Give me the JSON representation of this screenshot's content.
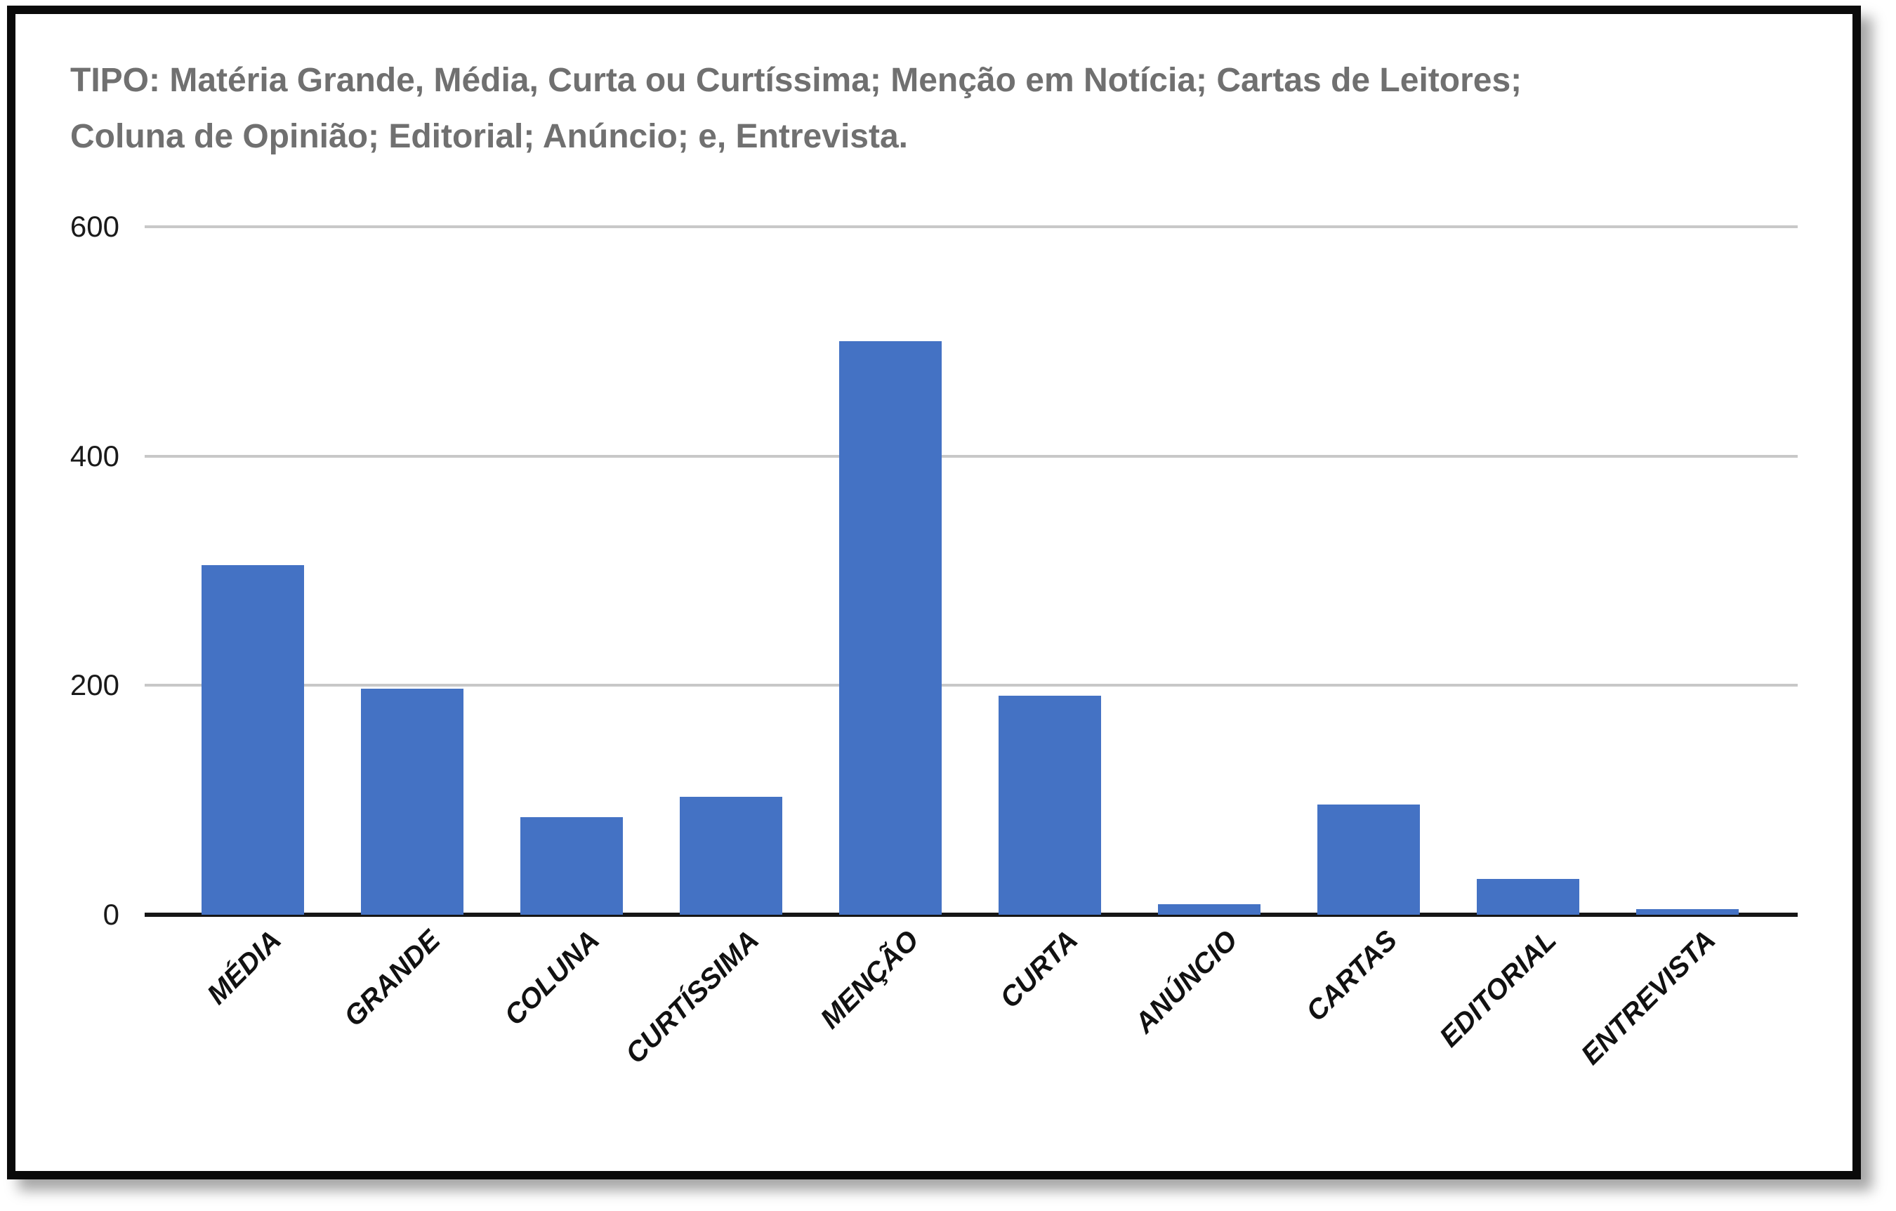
{
  "chart_data": {
    "type": "bar",
    "title": "TIPO: Matéria Grande, Média, Curta ou Curtíssima; Menção em Notícia; Cartas de Leitores; Coluna de Opinião; Editorial; Anúncio; e, Entrevista.",
    "title_lines": [
      "TIPO: Matéria Grande, Média, Curta ou Curtíssima; Menção em Notícia; Cartas de Leitores;",
      "Coluna de Opinião; Editorial; Anúncio; e, Entrevista."
    ],
    "categories": [
      "MÉDIA",
      "GRANDE",
      "COLUNA",
      "CURTÍSSIMA",
      "MENÇÃO",
      "CURTA",
      "ANÚNCIO",
      "CARTAS",
      "EDITORIAL",
      "ENTREVISTA"
    ],
    "values": [
      305,
      197,
      85,
      103,
      500,
      191,
      9,
      96,
      31,
      5
    ],
    "xlabel": "",
    "ylabel": "",
    "ylim": [
      0,
      600
    ],
    "yticks": [
      0,
      200,
      400,
      600
    ],
    "grid": true,
    "legend": "none",
    "x_label_rotation_deg": -45,
    "colors": {
      "bar": "#4472C4",
      "gridline": "#c8c8c8",
      "axis_line": "#161616",
      "title_text": "#707070",
      "tick_text": "#1a1a1a"
    }
  }
}
